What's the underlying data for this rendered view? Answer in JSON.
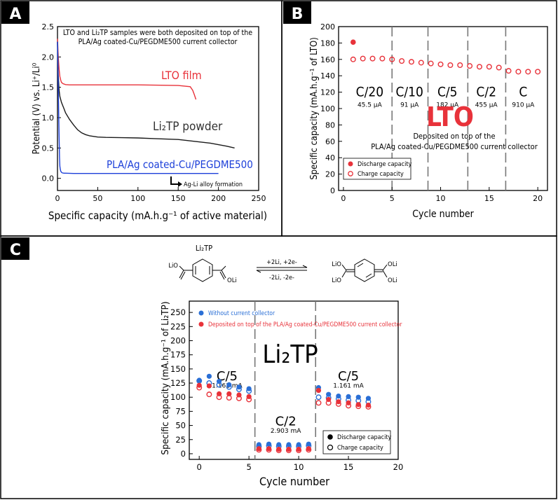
{
  "figure": {
    "panel_labels": [
      "A",
      "B",
      "C"
    ]
  },
  "chart_data": [
    {
      "id": "A",
      "type": "line",
      "xlabel": "Specific capacity (mA.h.g⁻¹ of active material)",
      "ylabel": "Potential (V) vs. Li⁺/Li⁰",
      "xlim": [
        0,
        250
      ],
      "ylim": [
        -0.2,
        2.5
      ],
      "xticks": [
        "0",
        "50",
        "100",
        "150",
        "200",
        "250"
      ],
      "yticks": [
        "0.0",
        "0.5",
        "1.0",
        "1.5",
        "2.0",
        "2.5"
      ],
      "xtick_values": [
        0,
        50,
        100,
        150,
        200,
        250
      ],
      "ytick_values": [
        0,
        0.5,
        1.0,
        1.5,
        2.0,
        2.5
      ],
      "note_line1": "LTO and Li₂TP samples were both deposited on top of the",
      "note_line2": "PLA/Ag coated-Cu/PEGDME500 current collector",
      "annotation": "Ag-Li alloy formation",
      "series": [
        {
          "name": "LTO film",
          "color": "#e8323a",
          "x": [
            0,
            1,
            2,
            3,
            4,
            5,
            7,
            10,
            15,
            20,
            30,
            50,
            100,
            150,
            165,
            168,
            170,
            172
          ],
          "y": [
            2.3,
            2.0,
            1.8,
            1.68,
            1.62,
            1.58,
            1.56,
            1.545,
            1.54,
            1.54,
            1.54,
            1.54,
            1.54,
            1.53,
            1.51,
            1.45,
            1.38,
            1.3
          ]
        },
        {
          "name": "Li₂TP powder",
          "color": "#1a1a1a",
          "x": [
            0,
            1,
            2,
            3,
            5,
            8,
            10,
            15,
            20,
            25,
            30,
            35,
            40,
            50,
            60,
            80,
            100,
            120,
            150,
            170,
            190,
            210,
            220
          ],
          "y": [
            2.25,
            1.7,
            1.45,
            1.35,
            1.25,
            1.15,
            1.08,
            0.97,
            0.88,
            0.8,
            0.75,
            0.72,
            0.7,
            0.68,
            0.675,
            0.67,
            0.665,
            0.655,
            0.64,
            0.61,
            0.58,
            0.53,
            0.5
          ]
        },
        {
          "name": "PLA/Ag coated-Cu/PEGDME500",
          "color": "#1c3fd9",
          "x": [
            0,
            0.5,
            1,
            1.5,
            2,
            2.5,
            3,
            3.5,
            4,
            5,
            6,
            8,
            10,
            20,
            50,
            100,
            150,
            200
          ],
          "y": [
            2.25,
            1.9,
            1.5,
            1.1,
            0.7,
            0.35,
            0.2,
            0.15,
            0.12,
            0.1,
            0.09,
            0.085,
            0.085,
            0.08,
            0.08,
            0.08,
            0.08,
            0.08
          ]
        }
      ]
    },
    {
      "id": "B",
      "type": "scatter",
      "xlabel": "Cycle number",
      "ylabel": "Specific capacity (mA.h.g⁻¹ of LTO)",
      "xlim": [
        -0.5,
        21
      ],
      "ylim": [
        0,
        200
      ],
      "xticks": [
        "0",
        "5",
        "10",
        "15",
        "20"
      ],
      "yticks": [
        "0",
        "20",
        "40",
        "60",
        "80",
        "100",
        "120",
        "140",
        "160",
        "180",
        "200"
      ],
      "xtick_values": [
        0,
        5,
        10,
        15,
        20
      ],
      "ytick_values": [
        0,
        20,
        40,
        60,
        80,
        100,
        120,
        140,
        160,
        180,
        200
      ],
      "big_label": "LTO",
      "note_line1": "Deposited on top of the",
      "note_line2": "PLA/Ag coated-Cu/PEGDME500 current collector",
      "dividers": [
        5,
        8.7,
        12.8,
        16.7
      ],
      "rates": [
        {
          "rate": "C/20",
          "current": "45.5 µA",
          "x": 2.7
        },
        {
          "rate": "C/10",
          "current": "91 µA",
          "x": 6.8
        },
        {
          "rate": "C/5",
          "current": "182 µA",
          "x": 10.7
        },
        {
          "rate": "C/2",
          "current": "455 µA",
          "x": 14.7
        },
        {
          "rate": "C",
          "current": "910 µA",
          "x": 18.5
        }
      ],
      "series": [
        {
          "name": "Discharge capacity",
          "marker": "filled",
          "color": "#e8323a",
          "x": [
            1
          ],
          "y": [
            181
          ]
        },
        {
          "name": "Charge capacity",
          "marker": "open",
          "color": "#e8323a",
          "x": [
            1,
            2,
            3,
            4,
            5,
            6,
            7,
            8,
            9,
            10,
            11,
            12,
            13,
            14,
            15,
            16,
            17,
            18,
            19,
            20
          ],
          "y": [
            160,
            161,
            161,
            161,
            160,
            158,
            157,
            156,
            155,
            154,
            153,
            153,
            152,
            151,
            151,
            150,
            146,
            145,
            145,
            145
          ]
        }
      ]
    },
    {
      "id": "C",
      "type": "scatter",
      "xlabel": "Cycle number",
      "ylabel": "Specific capacity (mA.h.g⁻¹ of Li₂TP)",
      "xlim": [
        -1,
        20
      ],
      "ylim": [
        -10,
        270
      ],
      "xticks": [
        "0",
        "5",
        "10",
        "15",
        "20"
      ],
      "yticks": [
        "0",
        "25",
        "50",
        "75",
        "100",
        "125",
        "150",
        "175",
        "200",
        "225",
        "250"
      ],
      "xtick_values": [
        0,
        5,
        10,
        15,
        20
      ],
      "ytick_values": [
        0,
        25,
        50,
        75,
        100,
        125,
        150,
        175,
        200,
        225,
        250
      ],
      "big_label": "Li₂TP",
      "dividers": [
        5.6,
        11.7
      ],
      "rates": [
        {
          "rate": "C/5",
          "current": "1.161 mA",
          "x": 2.8,
          "y": 100
        },
        {
          "rate": "C/2",
          "current": "2.903 mA",
          "x": 8.7,
          "y": 20
        },
        {
          "rate": "C/5",
          "current": "1.161 mA",
          "x": 15.0,
          "y": 100
        }
      ],
      "legend_top": [
        {
          "label": "Without current collector",
          "color": "#2a6fd6"
        },
        {
          "label": "Deposited on top of the PLA/Ag coated-Cu/PEGDME500 current collector",
          "color": "#e8323a"
        }
      ],
      "legend_bottom": [
        {
          "label": "Discharge capacity",
          "marker": "filled"
        },
        {
          "label": "Charge capacity",
          "marker": "open"
        }
      ],
      "series": [
        {
          "name": "Without CC - discharge",
          "marker": "filled",
          "color": "#2a6fd6",
          "x": [
            0,
            1,
            2,
            3,
            4,
            5,
            6,
            7,
            8,
            9,
            10,
            11,
            12,
            13,
            14,
            15,
            16,
            17
          ],
          "y": [
            130,
            137,
            128,
            122,
            118,
            115,
            16,
            17,
            16,
            16,
            16,
            17,
            117,
            105,
            102,
            101,
            100,
            98
          ]
        },
        {
          "name": "Without CC - charge",
          "marker": "open",
          "color": "#2a6fd6",
          "x": [
            0,
            1,
            2,
            3,
            4,
            5,
            6,
            7,
            8,
            9,
            10,
            11,
            12,
            13,
            14,
            15,
            16,
            17
          ],
          "y": [
            129,
            125,
            122,
            118,
            114,
            111,
            13,
            14,
            13,
            13,
            13,
            14,
            100,
            99,
            97,
            95,
            94,
            92
          ]
        },
        {
          "name": "On CC - discharge",
          "marker": "filled",
          "color": "#e8323a",
          "x": [
            0,
            1,
            2,
            3,
            4,
            5,
            6,
            7,
            8,
            9,
            10,
            11,
            12,
            13,
            14,
            15,
            16,
            17
          ],
          "y": [
            121,
            120,
            106,
            106,
            104,
            101,
            9,
            9,
            8,
            8,
            8,
            9,
            112,
            96,
            92,
            90,
            87,
            86
          ]
        },
        {
          "name": "On CC - charge",
          "marker": "open",
          "color": "#e8323a",
          "x": [
            0,
            1,
            2,
            3,
            4,
            5,
            6,
            7,
            8,
            9,
            10,
            11,
            12,
            13,
            14,
            15,
            16,
            17
          ],
          "y": [
            117,
            105,
            100,
            99,
            98,
            96,
            7,
            7,
            6,
            6,
            6,
            7,
            90,
            90,
            88,
            85,
            84,
            83
          ]
        }
      ]
    }
  ],
  "reaction": {
    "reactant": "Li₂TP",
    "forward": "+2Li, +2e-",
    "reverse": "-2Li, -2e-",
    "groups": [
      "LiO",
      "OLi",
      "LiO",
      "LiO",
      "OLi",
      "OLi"
    ]
  }
}
